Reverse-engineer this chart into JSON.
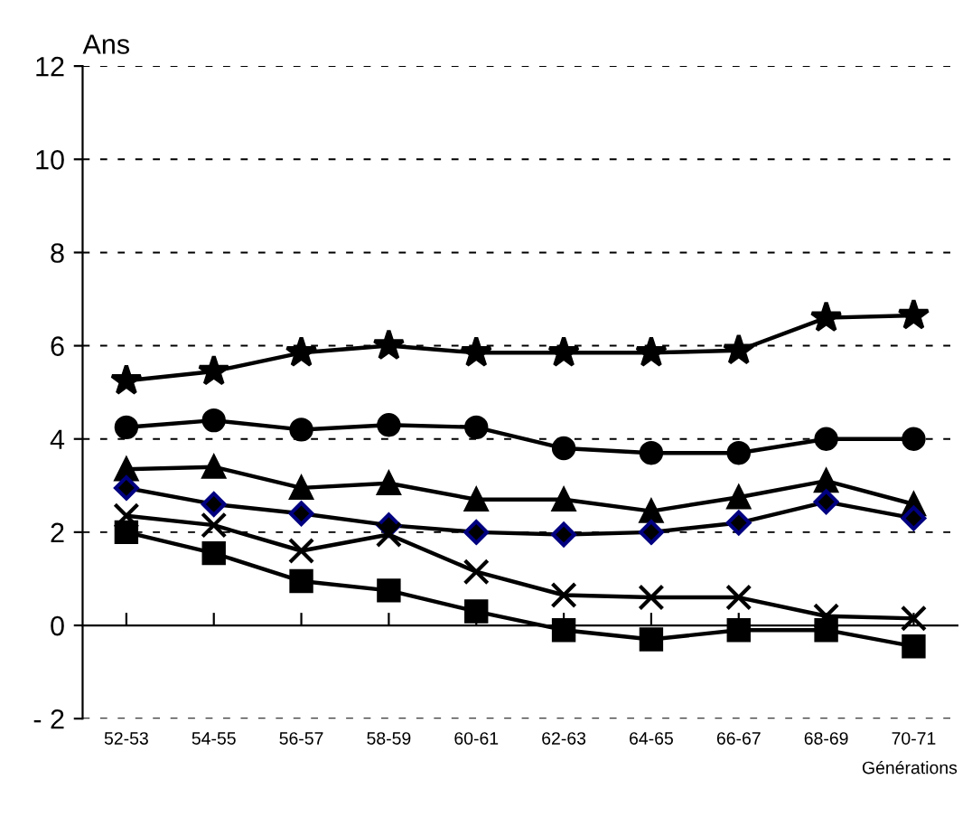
{
  "chart_data": {
    "type": "line",
    "ylabel": "Ans",
    "xlabel": "Générations",
    "categories": [
      "52-53",
      "54-55",
      "56-57",
      "58-59",
      "60-61",
      "62-63",
      "64-65",
      "66-67",
      "68-69",
      "70-71"
    ],
    "series": [
      {
        "color": "#000000",
        "marker": "star",
        "values": [
          5.25,
          5.45,
          5.85,
          6.0,
          5.85,
          5.85,
          5.85,
          5.9,
          6.6,
          6.65
        ]
      },
      {
        "color": "#000000",
        "marker": "circle",
        "values": [
          4.25,
          4.4,
          4.2,
          4.3,
          4.25,
          3.8,
          3.7,
          3.7,
          4.0,
          4.0
        ]
      },
      {
        "color": "#000000",
        "marker": "triangle",
        "values": [
          3.35,
          3.4,
          2.95,
          3.05,
          2.7,
          2.7,
          2.45,
          2.75,
          3.1,
          2.6
        ]
      },
      {
        "color": "#000000",
        "marker": "diamond",
        "values": [
          2.95,
          2.6,
          2.4,
          2.15,
          2.0,
          1.95,
          2.0,
          2.2,
          2.65,
          2.3
        ]
      },
      {
        "color": "#000000",
        "marker": "cross",
        "values": [
          2.35,
          2.15,
          1.6,
          1.95,
          1.15,
          0.65,
          0.6,
          0.6,
          0.2,
          0.15
        ]
      },
      {
        "color": "#000000",
        "marker": "square",
        "values": [
          2.0,
          1.55,
          0.95,
          0.75,
          0.3,
          -0.1,
          -0.3,
          -0.1,
          -0.1,
          -0.45
        ]
      }
    ],
    "ylim": [
      -2,
      12
    ],
    "yticks": [
      {
        "value": -2,
        "label": "- 2"
      },
      0,
      2,
      4,
      6,
      8,
      10,
      12
    ],
    "grid": "y",
    "legend": false
  }
}
